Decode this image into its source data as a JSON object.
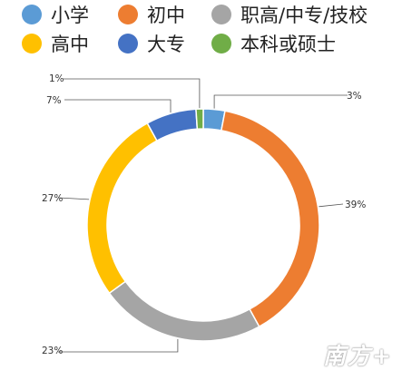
{
  "chart_data": {
    "type": "donut",
    "categories": [
      "小学",
      "初中",
      "职高/中专/技校",
      "高中",
      "大专",
      "本科或硕士"
    ],
    "values": [
      3,
      39,
      23,
      27,
      7,
      1
    ],
    "value_labels": [
      "3%",
      "39%",
      "23%",
      "27%",
      "7%",
      "1%"
    ],
    "colors": [
      "#5B9BD5",
      "#ED7D31",
      "#A5A5A5",
      "#FFC000",
      "#4472C4",
      "#70AD47"
    ],
    "legend_position": "top"
  },
  "watermark": "南方+"
}
